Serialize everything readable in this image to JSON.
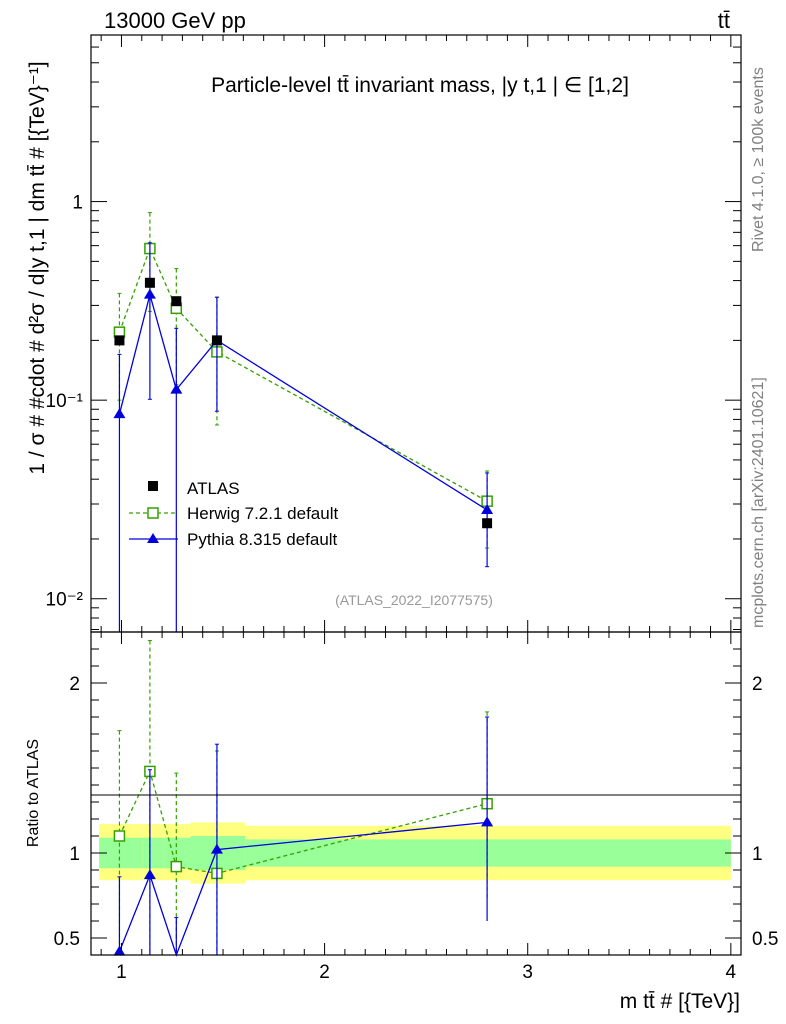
{
  "header": {
    "energy": "13000 GeV pp",
    "process": "tt̄"
  },
  "plot_title": "Particle-level tt̄ invariant mass, |y t,1 | ∈ [1,2]",
  "ylabel": "1 / σ # #cdot # d²σ / d|y t,1 | dm tt̄ # [{TeV}⁻¹]",
  "ratio_ylabel": "Ratio to ATLAS",
  "xlabel": "m tt̄ # [{TeV}]",
  "watermark": "(ATLAS_2022_I2077575)",
  "side_text": {
    "rivet": "Rivet 4.1.0, ≥ 100k events",
    "mcplots": "mcplots.cern.ch [arXiv:2401.10621]"
  },
  "colors": {
    "data": "#000000",
    "herwig": "#33a000",
    "pythia": "#0000dd",
    "band_outer": "#ffff80",
    "band_inner": "#99ff99"
  },
  "chart_data": {
    "type": "scatter",
    "title": "Particle-level tt̄ invariant mass, |y t,1| ∈ [1,2]",
    "x_axis": {
      "label": "m tt̄ [TeV]",
      "range": [
        0.85,
        4.05
      ],
      "ticks": [
        "1",
        "2",
        "3",
        "4"
      ]
    },
    "main_y_axis": {
      "scale": "log",
      "range": [
        0.0068,
        6.9
      ],
      "tick_labels": [
        "10⁻²",
        "10⁻¹",
        "1"
      ]
    },
    "ratio_y_axis": {
      "range": [
        0.4,
        2.3
      ],
      "tick_labels": [
        "0.5",
        "1",
        "2"
      ]
    },
    "legend": {
      "position": "middle-left",
      "entries": [
        "ATLAS",
        "Herwig 7.2.1 default",
        "Pythia 8.315 default"
      ]
    },
    "bins": [
      {
        "xlow": 0.89,
        "xhigh": 1.105,
        "x": 0.99
      },
      {
        "xlow": 1.105,
        "xhigh": 1.21,
        "x": 1.14
      },
      {
        "xlow": 1.21,
        "xhigh": 1.34,
        "x": 1.27
      },
      {
        "xlow": 1.34,
        "xhigh": 1.61,
        "x": 1.47
      },
      {
        "xlow": 1.61,
        "xhigh": 4.0,
        "x": 2.8
      }
    ],
    "series": [
      {
        "name": "ATLAS",
        "marker": "square",
        "x": [
          0.99,
          1.14,
          1.27,
          1.47,
          2.8
        ],
        "y": [
          0.2,
          0.39,
          0.315,
          0.2,
          0.024
        ]
      },
      {
        "name": "Herwig 7.2.1 default",
        "marker": "open-square",
        "line": "dashed",
        "x": [
          0.99,
          1.14,
          1.27,
          1.47,
          2.8
        ],
        "y": [
          0.22,
          0.58,
          0.29,
          0.175,
          0.031
        ],
        "y_err_high": [
          0.345,
          0.88,
          0.46,
          0.33,
          0.044
        ],
        "y_err_low": [
          0.1,
          0.28,
          0.12,
          0.075,
          0.018
        ],
        "ratio": [
          1.1,
          1.48,
          0.92,
          0.88,
          1.29
        ],
        "ratio_err_high": [
          1.72,
          2.25,
          1.47,
          1.6,
          1.83
        ],
        "ratio_err_low": [
          0.45,
          0.4,
          0.4,
          0.38,
          0.73
        ]
      },
      {
        "name": "Pythia 8.315 default",
        "marker": "triangle",
        "line": "solid",
        "x": [
          0.99,
          1.14,
          1.27,
          1.47,
          2.8
        ],
        "y": [
          0.085,
          0.34,
          0.113,
          0.2,
          0.028
        ],
        "y_err_high": [
          0.17,
          0.62,
          0.23,
          0.33,
          0.043
        ],
        "y_err_low": [
          0.0068,
          0.101,
          0.0068,
          0.088,
          0.0145
        ],
        "ratio": [
          0.42,
          0.87,
          0.36,
          1.02,
          1.18
        ],
        "ratio_err_high": [
          0.86,
          1.49,
          0.62,
          1.64,
          1.8
        ],
        "ratio_err_low": [
          0.4,
          0.4,
          0.4,
          0.4,
          0.6
        ]
      }
    ],
    "ratio_band": {
      "outer": [
        [
          0.84,
          1.17
        ],
        [
          0.84,
          1.17
        ],
        [
          0.84,
          1.17
        ],
        [
          0.82,
          1.18
        ],
        [
          0.84,
          1.16
        ]
      ],
      "inner": [
        [
          0.91,
          1.09
        ],
        [
          0.91,
          1.09
        ],
        [
          0.91,
          1.09
        ],
        [
          0.9,
          1.1
        ],
        [
          0.92,
          1.08
        ]
      ]
    }
  }
}
